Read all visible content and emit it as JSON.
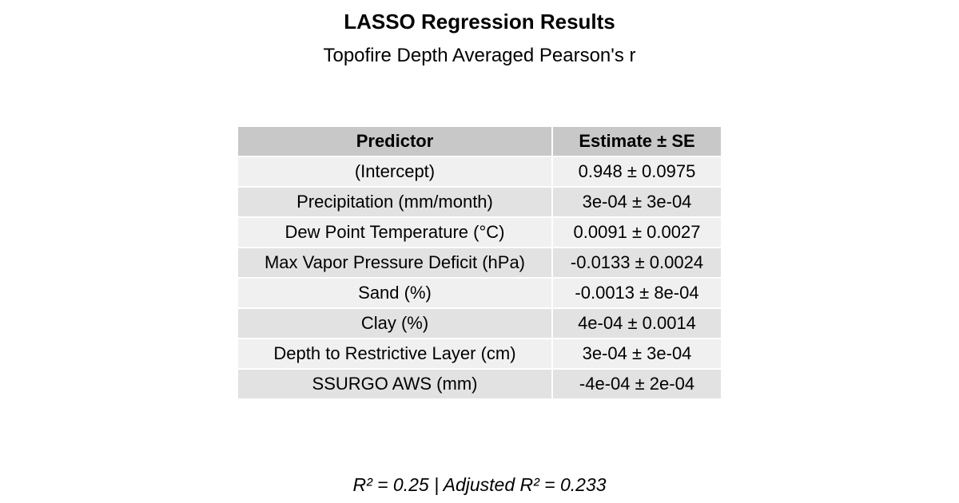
{
  "header": {
    "title": "LASSO Regression Results",
    "subtitle": "Topofire Depth Averaged Pearson's r"
  },
  "table": {
    "columns": [
      "Predictor",
      "Estimate ± SE"
    ],
    "rows": [
      {
        "predictor": "(Intercept)",
        "estimate": "0.948 ± 0.0975"
      },
      {
        "predictor": "Precipitation (mm/month)",
        "estimate": "3e-04 ± 3e-04"
      },
      {
        "predictor": "Dew Point Temperature (°C)",
        "estimate": "0.0091 ± 0.0027"
      },
      {
        "predictor": "Max Vapor Pressure Deficit (hPa)",
        "estimate": "-0.0133 ± 0.0024"
      },
      {
        "predictor": "Sand (%)",
        "estimate": "-0.0013 ± 8e-04"
      },
      {
        "predictor": "Clay (%)",
        "estimate": "4e-04 ± 0.0014"
      },
      {
        "predictor": "Depth to Restrictive Layer (cm)",
        "estimate": "3e-04 ± 3e-04"
      },
      {
        "predictor": "SSURGO AWS (mm)",
        "estimate": "-4e-04 ± 2e-04"
      }
    ]
  },
  "footer": {
    "fit_stats": "R² = 0.25 | Adjusted R² = 0.233"
  }
}
